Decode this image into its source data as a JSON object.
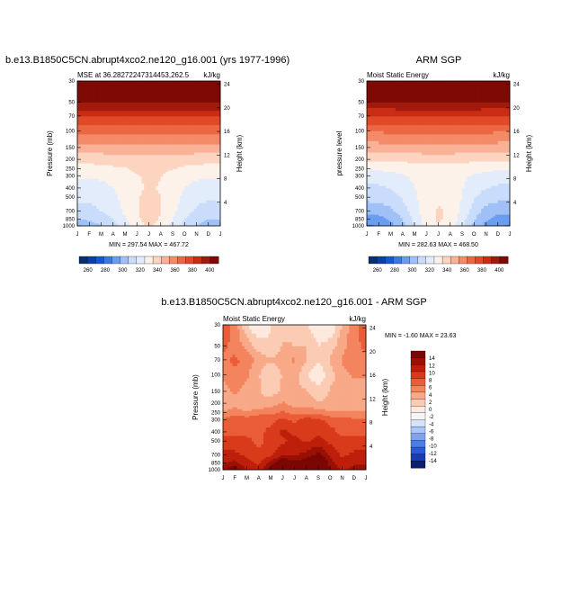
{
  "figure": {
    "top_title": "b.e13.B1850C5CN.abrupt4xco2.ne120_g16.001 (yrs 1977-1996)",
    "bottom_title": "b.e13.B1850C5CN.abrupt4xco2.ne120_g16.001 - ARM SGP"
  },
  "colors": {
    "abs_scale": [
      "#08306b",
      "#0a3ea8",
      "#1456d4",
      "#3b78e6",
      "#6a9cf0",
      "#9fc1f7",
      "#c9dcfb",
      "#e3ecfb",
      "#fdf2ea",
      "#fcd4bf",
      "#f9b197",
      "#f48b68",
      "#ec6744",
      "#e04a28",
      "#c92d14",
      "#a21a0c",
      "#7d0a05"
    ],
    "diff_scale": [
      "#08206e",
      "#1b3cb0",
      "#2c59d8",
      "#4d7ce9",
      "#7fa2f2",
      "#adc6f8",
      "#d6e4fb",
      "#f5f5f5",
      "#fde9de",
      "#fbcbb4",
      "#f8a988",
      "#f3845e",
      "#ea5d38",
      "#d93a1b",
      "#bd1f0b",
      "#991005",
      "#7a0704"
    ]
  },
  "chart_data": [
    {
      "type": "heatmap",
      "name": "model",
      "title": "",
      "subtitle_left": "MSE at 36.28272247314453,262.5",
      "subtitle_right": "kJ/kg",
      "ylabel": "Pressure (mb)",
      "ylabel_right": "Height (km)",
      "x_ticks": [
        "J",
        "F",
        "M",
        "A",
        "M",
        "J",
        "J",
        "A",
        "S",
        "O",
        "N",
        "D",
        "J"
      ],
      "y_ticks": [
        "30",
        "50",
        "70",
        "100",
        "150",
        "200",
        "250",
        "300",
        "400",
        "500",
        "700",
        "850",
        "1000"
      ],
      "y_ticks_values": [
        30,
        50,
        70,
        100,
        150,
        200,
        250,
        300,
        400,
        500,
        700,
        850,
        1000
      ],
      "y_right_ticks": [
        "24",
        "20",
        "16",
        "12",
        "8",
        "4"
      ],
      "y_right_values": [
        24,
        20,
        16,
        12,
        8,
        4
      ],
      "minmax": "MIN = 297.54   MAX = 467.72",
      "colorbar": {
        "levels": [
          "260",
          "280",
          "300",
          "320",
          "340",
          "360",
          "380",
          "400"
        ],
        "min": 250,
        "max": 410
      },
      "grid_x": [
        1,
        2,
        3,
        4,
        5,
        6,
        7,
        8,
        9,
        10,
        11,
        12,
        13
      ],
      "grid_p": [
        1000,
        850,
        700,
        500,
        400,
        300,
        250,
        200,
        150,
        100,
        70,
        50,
        30
      ],
      "values": [
        [
          302,
          303,
          306,
          312,
          320,
          330,
          336,
          332,
          322,
          312,
          306,
          303,
          302
        ],
        [
          306,
          307,
          310,
          316,
          324,
          333,
          338,
          334,
          325,
          316,
          309,
          306,
          306
        ],
        [
          312,
          313,
          316,
          320,
          327,
          334,
          338,
          335,
          328,
          320,
          314,
          311,
          312
        ],
        [
          318,
          318,
          320,
          323,
          329,
          334,
          337,
          335,
          330,
          323,
          319,
          317,
          318
        ],
        [
          321,
          321,
          322,
          325,
          329,
          333,
          336,
          334,
          330,
          325,
          322,
          320,
          321
        ],
        [
          326,
          326,
          327,
          329,
          331,
          334,
          336,
          335,
          332,
          329,
          327,
          326,
          326
        ],
        [
          331,
          331,
          332,
          333,
          334,
          336,
          337,
          336,
          335,
          333,
          332,
          331,
          331
        ],
        [
          338,
          338,
          338,
          339,
          339,
          340,
          340,
          340,
          339,
          339,
          338,
          338,
          338
        ],
        [
          350,
          350,
          350,
          350,
          350,
          351,
          351,
          351,
          351,
          350,
          350,
          350,
          350
        ],
        [
          365,
          365,
          366,
          366,
          366,
          366,
          366,
          366,
          366,
          366,
          365,
          365,
          365
        ],
        [
          382,
          382,
          382,
          382,
          382,
          382,
          382,
          382,
          382,
          382,
          382,
          382,
          382
        ],
        [
          402,
          402,
          402,
          402,
          402,
          402,
          402,
          402,
          402,
          402,
          402,
          402,
          402
        ],
        [
          430,
          430,
          430,
          430,
          430,
          430,
          430,
          430,
          430,
          430,
          430,
          430,
          430
        ]
      ]
    },
    {
      "type": "heatmap",
      "name": "obs",
      "title": "ARM SGP",
      "subtitle_left": "Moist Static Energy",
      "subtitle_right": "kJ/kg",
      "ylabel": "pressure level",
      "ylabel_right": "Height (km)",
      "x_ticks": [
        "J",
        "F",
        "M",
        "A",
        "M",
        "J",
        "J",
        "A",
        "S",
        "O",
        "N",
        "D",
        "J"
      ],
      "y_ticks": [
        "30",
        "50",
        "70",
        "100",
        "150",
        "200",
        "250",
        "300",
        "400",
        "500",
        "700",
        "850",
        "1000"
      ],
      "y_ticks_values": [
        30,
        50,
        70,
        100,
        150,
        200,
        250,
        300,
        400,
        500,
        700,
        850,
        1000
      ],
      "y_right_ticks": [
        "24",
        "20",
        "16",
        "12",
        "8",
        "4"
      ],
      "y_right_values": [
        24,
        20,
        16,
        12,
        8,
        4
      ],
      "minmax": "MIN = 282.63   MAX = 468.50",
      "colorbar": {
        "levels": [
          "260",
          "280",
          "300",
          "320",
          "340",
          "360",
          "380",
          "400"
        ],
        "min": 250,
        "max": 410
      },
      "grid_x": [
        1,
        2,
        3,
        4,
        5,
        6,
        7,
        8,
        9,
        10,
        11,
        12,
        13
      ],
      "grid_p": [
        1000,
        850,
        700,
        500,
        400,
        300,
        250,
        200,
        150,
        100,
        70,
        50,
        30
      ],
      "values": [
        [
          286,
          288,
          294,
          304,
          316,
          328,
          334,
          330,
          318,
          304,
          294,
          289,
          286
        ],
        [
          292,
          293,
          298,
          306,
          318,
          330,
          336,
          332,
          320,
          307,
          298,
          293,
          292
        ],
        [
          300,
          301,
          304,
          311,
          321,
          331,
          336,
          333,
          323,
          311,
          303,
          300,
          300
        ],
        [
          309,
          310,
          312,
          317,
          324,
          330,
          333,
          331,
          325,
          317,
          311,
          309,
          309
        ],
        [
          314,
          314,
          316,
          320,
          325,
          329,
          331,
          330,
          326,
          320,
          316,
          314,
          314
        ],
        [
          320,
          320,
          321,
          324,
          327,
          329,
          330,
          329,
          327,
          324,
          321,
          320,
          320
        ],
        [
          327,
          327,
          328,
          329,
          330,
          331,
          331,
          331,
          330,
          329,
          328,
          327,
          327
        ],
        [
          336,
          336,
          336,
          337,
          337,
          338,
          338,
          338,
          337,
          337,
          336,
          336,
          336
        ],
        [
          349,
          349,
          349,
          350,
          350,
          351,
          351,
          351,
          350,
          350,
          349,
          349,
          349
        ],
        [
          364,
          364,
          365,
          365,
          366,
          366,
          366,
          366,
          366,
          365,
          365,
          364,
          364
        ],
        [
          381,
          381,
          381,
          382,
          382,
          382,
          382,
          382,
          382,
          382,
          381,
          381,
          381
        ],
        [
          401,
          401,
          401,
          401,
          402,
          402,
          402,
          402,
          402,
          401,
          401,
          401,
          401
        ],
        [
          430,
          430,
          430,
          430,
          430,
          430,
          430,
          430,
          430,
          430,
          430,
          430,
          430
        ]
      ]
    },
    {
      "type": "heatmap",
      "name": "diff",
      "title": "",
      "subtitle_left": "Moist Static Energy",
      "subtitle_right": "kJ/kg",
      "ylabel": "Pressure (mb)",
      "ylabel_right": "Height (km)",
      "x_ticks": [
        "J",
        "F",
        "M",
        "A",
        "M",
        "J",
        "J",
        "A",
        "S",
        "O",
        "N",
        "D",
        "J"
      ],
      "y_ticks": [
        "30",
        "50",
        "70",
        "100",
        "150",
        "200",
        "250",
        "300",
        "400",
        "500",
        "700",
        "850",
        "1000"
      ],
      "y_ticks_values": [
        30,
        50,
        70,
        100,
        150,
        200,
        250,
        300,
        400,
        500,
        700,
        850,
        1000
      ],
      "y_right_ticks": [
        "24",
        "20",
        "16",
        "12",
        "8",
        "4"
      ],
      "y_right_values": [
        24,
        20,
        16,
        12,
        8,
        4
      ],
      "minmax": "MIN = -1.60  MAX =  23.63",
      "colorbar": {
        "levels": [
          "14",
          "12",
          "10",
          "8",
          "6",
          "4",
          "2",
          "0",
          "-2",
          "-4",
          "-6",
          "-8",
          "-10",
          "-12",
          "-14"
        ],
        "min": -16,
        "max": 16
      },
      "grid_x": [
        1,
        2,
        3,
        4,
        5,
        6,
        7,
        8,
        9,
        10,
        11,
        12,
        13
      ],
      "grid_p": [
        1000,
        850,
        700,
        500,
        400,
        300,
        250,
        200,
        150,
        100,
        70,
        50,
        30
      ],
      "values": [
        [
          14,
          16,
          12,
          11,
          16,
          21,
          18,
          17,
          23,
          14,
          12,
          13,
          14
        ],
        [
          12,
          13,
          11,
          10,
          13,
          17,
          15,
          16,
          20,
          13,
          11,
          12,
          12
        ],
        [
          11,
          11,
          10,
          9,
          10,
          12,
          12,
          13,
          15,
          12,
          10,
          11,
          11
        ],
        [
          9,
          9,
          9,
          8,
          9,
          10,
          11,
          10,
          11,
          10,
          9,
          9,
          9
        ],
        [
          8,
          8,
          8,
          8,
          9,
          11,
          10,
          9,
          10,
          9,
          8,
          8,
          8
        ],
        [
          7,
          8,
          8,
          8,
          8,
          9,
          8,
          10,
          9,
          8,
          8,
          7,
          7
        ],
        [
          5,
          6,
          5,
          6,
          6,
          7,
          6,
          6,
          6,
          5,
          5,
          5,
          5
        ],
        [
          3,
          4,
          3,
          3,
          4,
          5,
          4,
          4,
          3,
          3,
          3,
          3,
          3
        ],
        [
          4,
          5,
          4,
          3,
          2,
          3,
          3,
          3,
          2,
          3,
          4,
          4,
          4
        ],
        [
          5,
          6,
          5,
          3,
          1,
          3,
          4,
          1,
          -1,
          2,
          4,
          5,
          5
        ],
        [
          6,
          7,
          6,
          4,
          3,
          4,
          5,
          3,
          1,
          3,
          5,
          6,
          6
        ],
        [
          7,
          6,
          4,
          2,
          1,
          3,
          3,
          3,
          1,
          2,
          4,
          6,
          7
        ],
        [
          8,
          6,
          1,
          -1,
          1,
          2,
          1,
          1,
          -1,
          -1,
          3,
          6,
          8
        ]
      ]
    }
  ]
}
